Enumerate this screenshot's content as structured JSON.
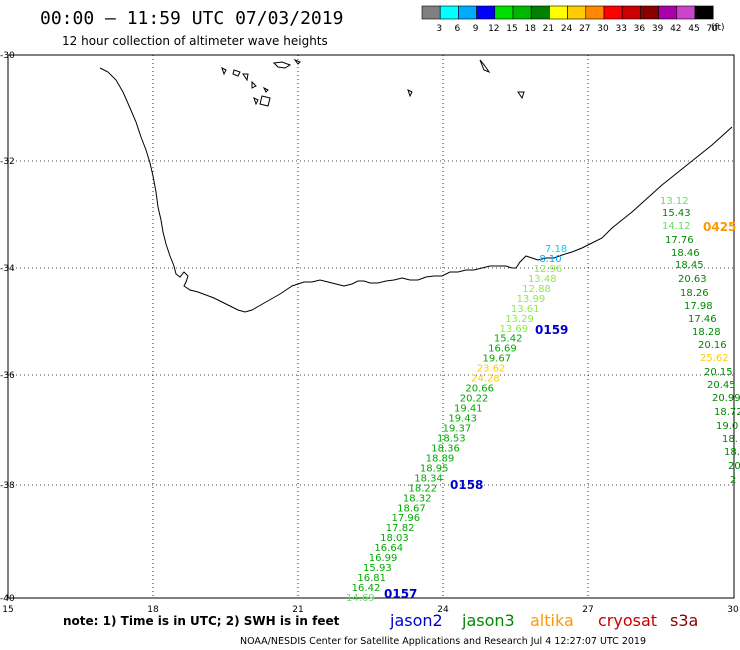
{
  "header": {
    "title": "00:00 – 11:59 UTC 07/03/2019",
    "subtitle": "12 hour collection of altimeter wave heights"
  },
  "colorbar": {
    "unit": "(ft)",
    "swatches": [
      {
        "color": "#808080",
        "label": "3"
      },
      {
        "color": "#00ffff",
        "label": "6"
      },
      {
        "color": "#00aaff",
        "label": "9"
      },
      {
        "color": "#0000ff",
        "label": "12"
      },
      {
        "color": "#00e000",
        "label": "15"
      },
      {
        "color": "#00b800",
        "label": "18"
      },
      {
        "color": "#008000",
        "label": "21"
      },
      {
        "color": "#ffff00",
        "label": "24"
      },
      {
        "color": "#ffcc00",
        "label": "27"
      },
      {
        "color": "#ff8800",
        "label": "30"
      },
      {
        "color": "#ff0000",
        "label": "33"
      },
      {
        "color": "#cc0000",
        "label": "36"
      },
      {
        "color": "#880000",
        "label": "39"
      },
      {
        "color": "#aa00aa",
        "label": "42"
      },
      {
        "color": "#cc44cc",
        "label": "45"
      },
      {
        "color": "#000000",
        "label": "70"
      }
    ]
  },
  "axes": {
    "lat_labels": [
      "-30",
      "-32",
      "-34",
      "-36",
      "-38",
      "-40"
    ],
    "lon_labels": [
      "15",
      "18",
      "21",
      "24",
      "27",
      "30"
    ]
  },
  "footer": {
    "note": "note: 1) Time is in UTC; 2) SWH is in feet",
    "legend": [
      {
        "name": "jason2",
        "color": "#0000cc"
      },
      {
        "name": "jason3",
        "color": "#008800"
      },
      {
        "name": "altika",
        "color": "#ff9900"
      },
      {
        "name": "cryosat",
        "color": "#cc0000"
      },
      {
        "name": "s3a",
        "color": "#880000"
      }
    ],
    "credit": "NOAA/NESDIS Center for Satellite Applications and Research   Jul  4 12:27:07 UTC 2019"
  },
  "pass_labels": [
    {
      "text": "0159",
      "color": "#0000cc"
    },
    {
      "text": "0158",
      "color": "#0000cc"
    },
    {
      "text": "0157",
      "color": "#0000cc"
    },
    {
      "text": "0425",
      "color": "#ff9900"
    }
  ],
  "east_track": [
    {
      "v": "13.12",
      "color": "#66dd66"
    },
    {
      "v": "15.43",
      "color": "#008800"
    },
    {
      "v": "14.12",
      "color": "#66dd66"
    },
    {
      "v": "17.76",
      "color": "#008800"
    },
    {
      "v": "18.46",
      "color": "#008800"
    },
    {
      "v": "18.45",
      "color": "#008800"
    },
    {
      "v": "20.63",
      "color": "#008800"
    },
    {
      "v": "18.26",
      "color": "#008800"
    },
    {
      "v": "17.98",
      "color": "#008800"
    },
    {
      "v": "17.46",
      "color": "#008800"
    },
    {
      "v": "18.28",
      "color": "#008800"
    },
    {
      "v": "20.16",
      "color": "#008800"
    },
    {
      "v": "25.62",
      "color": "#ffcc00"
    },
    {
      "v": "20.15",
      "color": "#008800"
    },
    {
      "v": "20.45",
      "color": "#008800"
    },
    {
      "v": "20.99",
      "color": "#008800"
    },
    {
      "v": "18.72",
      "color": "#008800"
    },
    {
      "v": "19.0",
      "color": "#008800"
    },
    {
      "v": "18.",
      "color": "#008800"
    },
    {
      "v": "18.",
      "color": "#008800"
    },
    {
      "v": "20",
      "color": "#008800"
    },
    {
      "v": "2",
      "color": "#008800"
    }
  ],
  "diag_track": [
    {
      "v": "7.18",
      "color": "#00ccff"
    },
    {
      "v": "8.10",
      "color": "#00aaff"
    },
    {
      "v": "12.96",
      "color": "#88ee44"
    },
    {
      "v": "13.48",
      "color": "#88ee44"
    },
    {
      "v": "12.88",
      "color": "#88ee44"
    },
    {
      "v": "13.99",
      "color": "#88ee44"
    },
    {
      "v": "13.61",
      "color": "#88ee44"
    },
    {
      "v": "13.29",
      "color": "#88ee44"
    },
    {
      "v": "13.69",
      "color": "#88ee44"
    },
    {
      "v": "15.42",
      "color": "#00aa00"
    },
    {
      "v": "16.69",
      "color": "#00aa00"
    },
    {
      "v": "19.67",
      "color": "#00aa00"
    },
    {
      "v": "23.62",
      "color": "#ffcc00"
    },
    {
      "v": "24.28",
      "color": "#ffcc00"
    },
    {
      "v": "20.66",
      "color": "#00aa00"
    },
    {
      "v": "20.22",
      "color": "#00aa00"
    },
    {
      "v": "19.41",
      "color": "#00aa00"
    },
    {
      "v": "19.43",
      "color": "#00aa00"
    },
    {
      "v": "19.37",
      "color": "#00aa00"
    },
    {
      "v": "18.53",
      "color": "#00aa00"
    },
    {
      "v": "18.36",
      "color": "#00aa00"
    },
    {
      "v": "18.89",
      "color": "#00aa00"
    },
    {
      "v": "18.95",
      "color": "#00aa00"
    },
    {
      "v": "18.34",
      "color": "#00aa00"
    },
    {
      "v": "18.22",
      "color": "#00aa00"
    },
    {
      "v": "18.32",
      "color": "#00aa00"
    },
    {
      "v": "18.67",
      "color": "#00aa00"
    },
    {
      "v": "17.96",
      "color": "#00aa00"
    },
    {
      "v": "17.82",
      "color": "#00aa00"
    },
    {
      "v": "18.03",
      "color": "#00aa00"
    },
    {
      "v": "16.64",
      "color": "#00aa00"
    },
    {
      "v": "16.99",
      "color": "#00aa00"
    },
    {
      "v": "15.93",
      "color": "#00aa00"
    },
    {
      "v": "16.81",
      "color": "#00aa00"
    },
    {
      "v": "16.42",
      "color": "#00aa00"
    },
    {
      "v": "14.69",
      "color": "#66dd66"
    }
  ]
}
